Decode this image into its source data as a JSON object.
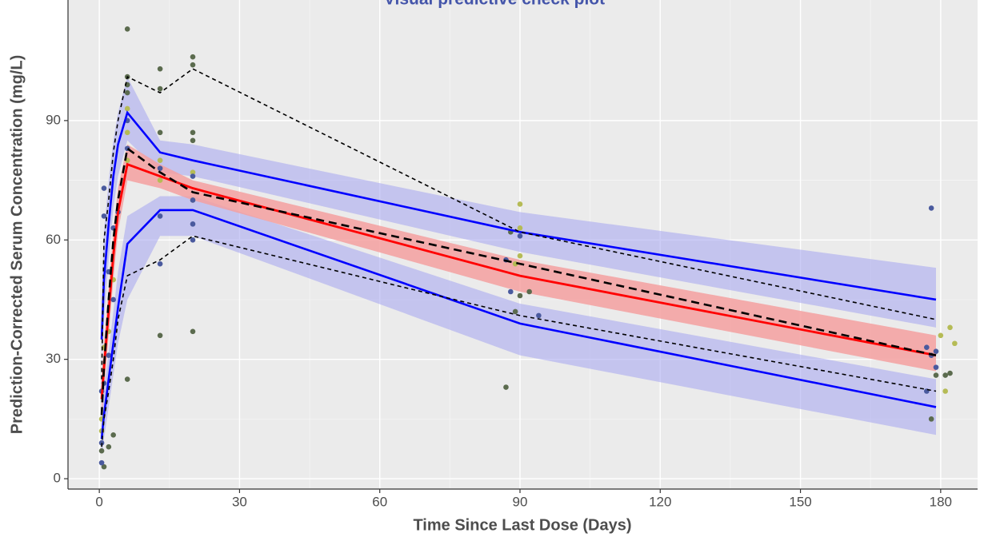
{
  "chart_data": {
    "type": "vpc",
    "title": "Visual predictive check plot",
    "x_label": "Time Since Last Dose (Days)",
    "y_label": "Prediction-Corrected Serum Concentration (mg/L)",
    "xlim": [
      -6.7,
      187.9
    ],
    "ylim": [
      -2.6,
      120.3
    ],
    "xticks": [
      0,
      30,
      60,
      90,
      120,
      150,
      180
    ],
    "yticks": [
      0,
      30,
      60,
      90
    ],
    "grid": true,
    "x": [
      0.5,
      1,
      2,
      3,
      4,
      6,
      13,
      20,
      90,
      179
    ],
    "bands": [
      {
        "color": "#aaaaf0",
        "opacity": 0.6,
        "lower": [
          28,
          40,
          55,
          68,
          76,
          85,
          77,
          76,
          57,
          38
        ],
        "upper": [
          45,
          62,
          75,
          85,
          92,
          101,
          85,
          84,
          67,
          53
        ]
      },
      {
        "color": "#aaaaf0",
        "opacity": 0.6,
        "lower": [
          6,
          10,
          18,
          26,
          34,
          45,
          61,
          61,
          31,
          11
        ],
        "upper": [
          14,
          22,
          32,
          42,
          52,
          66,
          71,
          71,
          44,
          25
        ]
      },
      {
        "color": "#f4a0a0",
        "opacity": 0.85,
        "lower": [
          15,
          22,
          36,
          50,
          62,
          75,
          73,
          70,
          47,
          27
        ],
        "upper": [
          25,
          34,
          48,
          62,
          73,
          84,
          79,
          75,
          55,
          36
        ]
      }
    ],
    "lines": [
      {
        "color": "#0000ff",
        "dash": "none",
        "width": 2.6,
        "values": [
          35,
          50,
          64,
          76,
          84,
          92,
          82,
          80,
          62,
          45
        ]
      },
      {
        "color": "#0000ff",
        "dash": "none",
        "width": 2.6,
        "values": [
          10,
          16,
          25,
          34,
          43,
          59,
          67.5,
          67.5,
          39,
          18
        ]
      },
      {
        "color": "#ff0000",
        "dash": "none",
        "width": 2.8,
        "values": [
          20,
          28,
          42,
          56,
          67,
          79,
          76,
          73,
          51,
          31
        ]
      },
      {
        "color": "#000000",
        "dash": "10,6",
        "width": 2.6,
        "values": [
          16,
          28,
          45,
          60,
          70,
          83,
          77,
          72,
          54,
          31
        ]
      },
      {
        "color": "#000000",
        "dash": "5,4",
        "width": 1.6,
        "values": [
          8,
          15,
          22,
          30,
          40,
          51,
          55,
          61,
          41,
          22
        ]
      },
      {
        "color": "#000000",
        "dash": "5,4",
        "width": 1.6,
        "values": [
          25,
          60,
          70,
          82,
          90,
          101,
          97,
          103,
          62,
          40
        ]
      }
    ],
    "points": [
      {
        "color": "#5b6b4e",
        "x": [
          6,
          6,
          6,
          13,
          13,
          20,
          20,
          20,
          20,
          13,
          20,
          6,
          87,
          178,
          179,
          181,
          182,
          1,
          3,
          2,
          90,
          92,
          89,
          0.5,
          13,
          6,
          88
        ],
        "y": [
          113,
          101,
          99,
          103,
          98,
          106,
          104,
          87,
          85,
          36,
          37,
          25,
          23,
          15,
          26,
          26,
          26.5,
          3,
          11,
          8,
          46,
          47,
          42,
          7,
          87,
          97,
          62
        ]
      },
      {
        "color": "#b5bb55",
        "x": [
          6,
          6,
          13,
          13,
          20,
          90,
          90,
          90,
          181,
          182,
          183,
          180,
          1,
          2,
          0.5,
          0.5,
          3,
          20,
          6,
          89
        ],
        "y": [
          93,
          87,
          80,
          75,
          77,
          69,
          63,
          56,
          22,
          38,
          34,
          36,
          33,
          37,
          12,
          15,
          50,
          70,
          80,
          54
        ]
      },
      {
        "color": "#4a5a9e",
        "x": [
          1,
          1,
          0.5,
          0.5,
          0.5,
          2,
          3,
          4,
          6,
          6,
          13,
          13,
          13,
          20,
          20,
          20,
          20,
          87,
          88,
          90,
          94,
          178,
          177,
          178,
          179,
          177,
          179,
          1,
          2,
          3
        ],
        "y": [
          73,
          66,
          4,
          9,
          22,
          52,
          63,
          67,
          90,
          83,
          78,
          54,
          66,
          76,
          70,
          64,
          60,
          55,
          47,
          61,
          41,
          68,
          33,
          31,
          28,
          22,
          32,
          24,
          31,
          45
        ]
      }
    ]
  }
}
